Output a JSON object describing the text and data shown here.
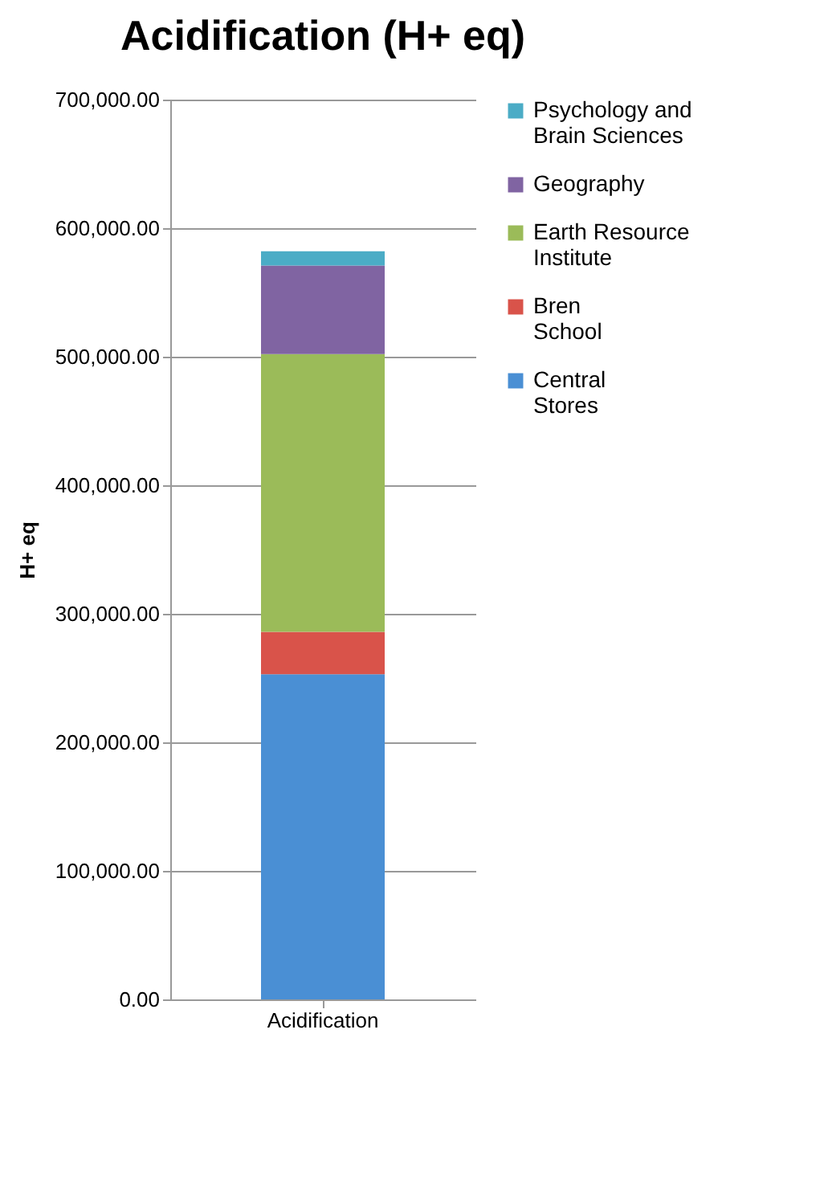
{
  "chart_data": {
    "type": "bar",
    "title": "Acidification (H+ eq)",
    "ylabel": "H+ eq",
    "categories": [
      "Acidification"
    ],
    "stacked": true,
    "ylim": [
      0,
      700000
    ],
    "yticks": [
      {
        "value": 0,
        "label": "0.00"
      },
      {
        "value": 100000,
        "label": "100,000.00"
      },
      {
        "value": 200000,
        "label": "200,000.00"
      },
      {
        "value": 300000,
        "label": "300,000.00"
      },
      {
        "value": 400000,
        "label": "400,000.00"
      },
      {
        "value": 500000,
        "label": "500,000.00"
      },
      {
        "value": 600000,
        "label": "600,000.00"
      },
      {
        "value": 700000,
        "label": "700,000.00"
      }
    ],
    "grid": "y",
    "legend": "right",
    "series": [
      {
        "name": "Central Stores",
        "color": "#4a8fd4",
        "values": [
          253000
        ]
      },
      {
        "name": "Bren School",
        "color": "#d9534a",
        "values": [
          33000
        ]
      },
      {
        "name": "Earth Resource Institute",
        "color": "#9bbb59",
        "values": [
          216000
        ]
      },
      {
        "name": "Geography",
        "color": "#8064a2",
        "values": [
          69000
        ]
      },
      {
        "name": "Psychology and Brain Sciences",
        "color": "#4bacc6",
        "values": [
          11000
        ]
      }
    ]
  }
}
